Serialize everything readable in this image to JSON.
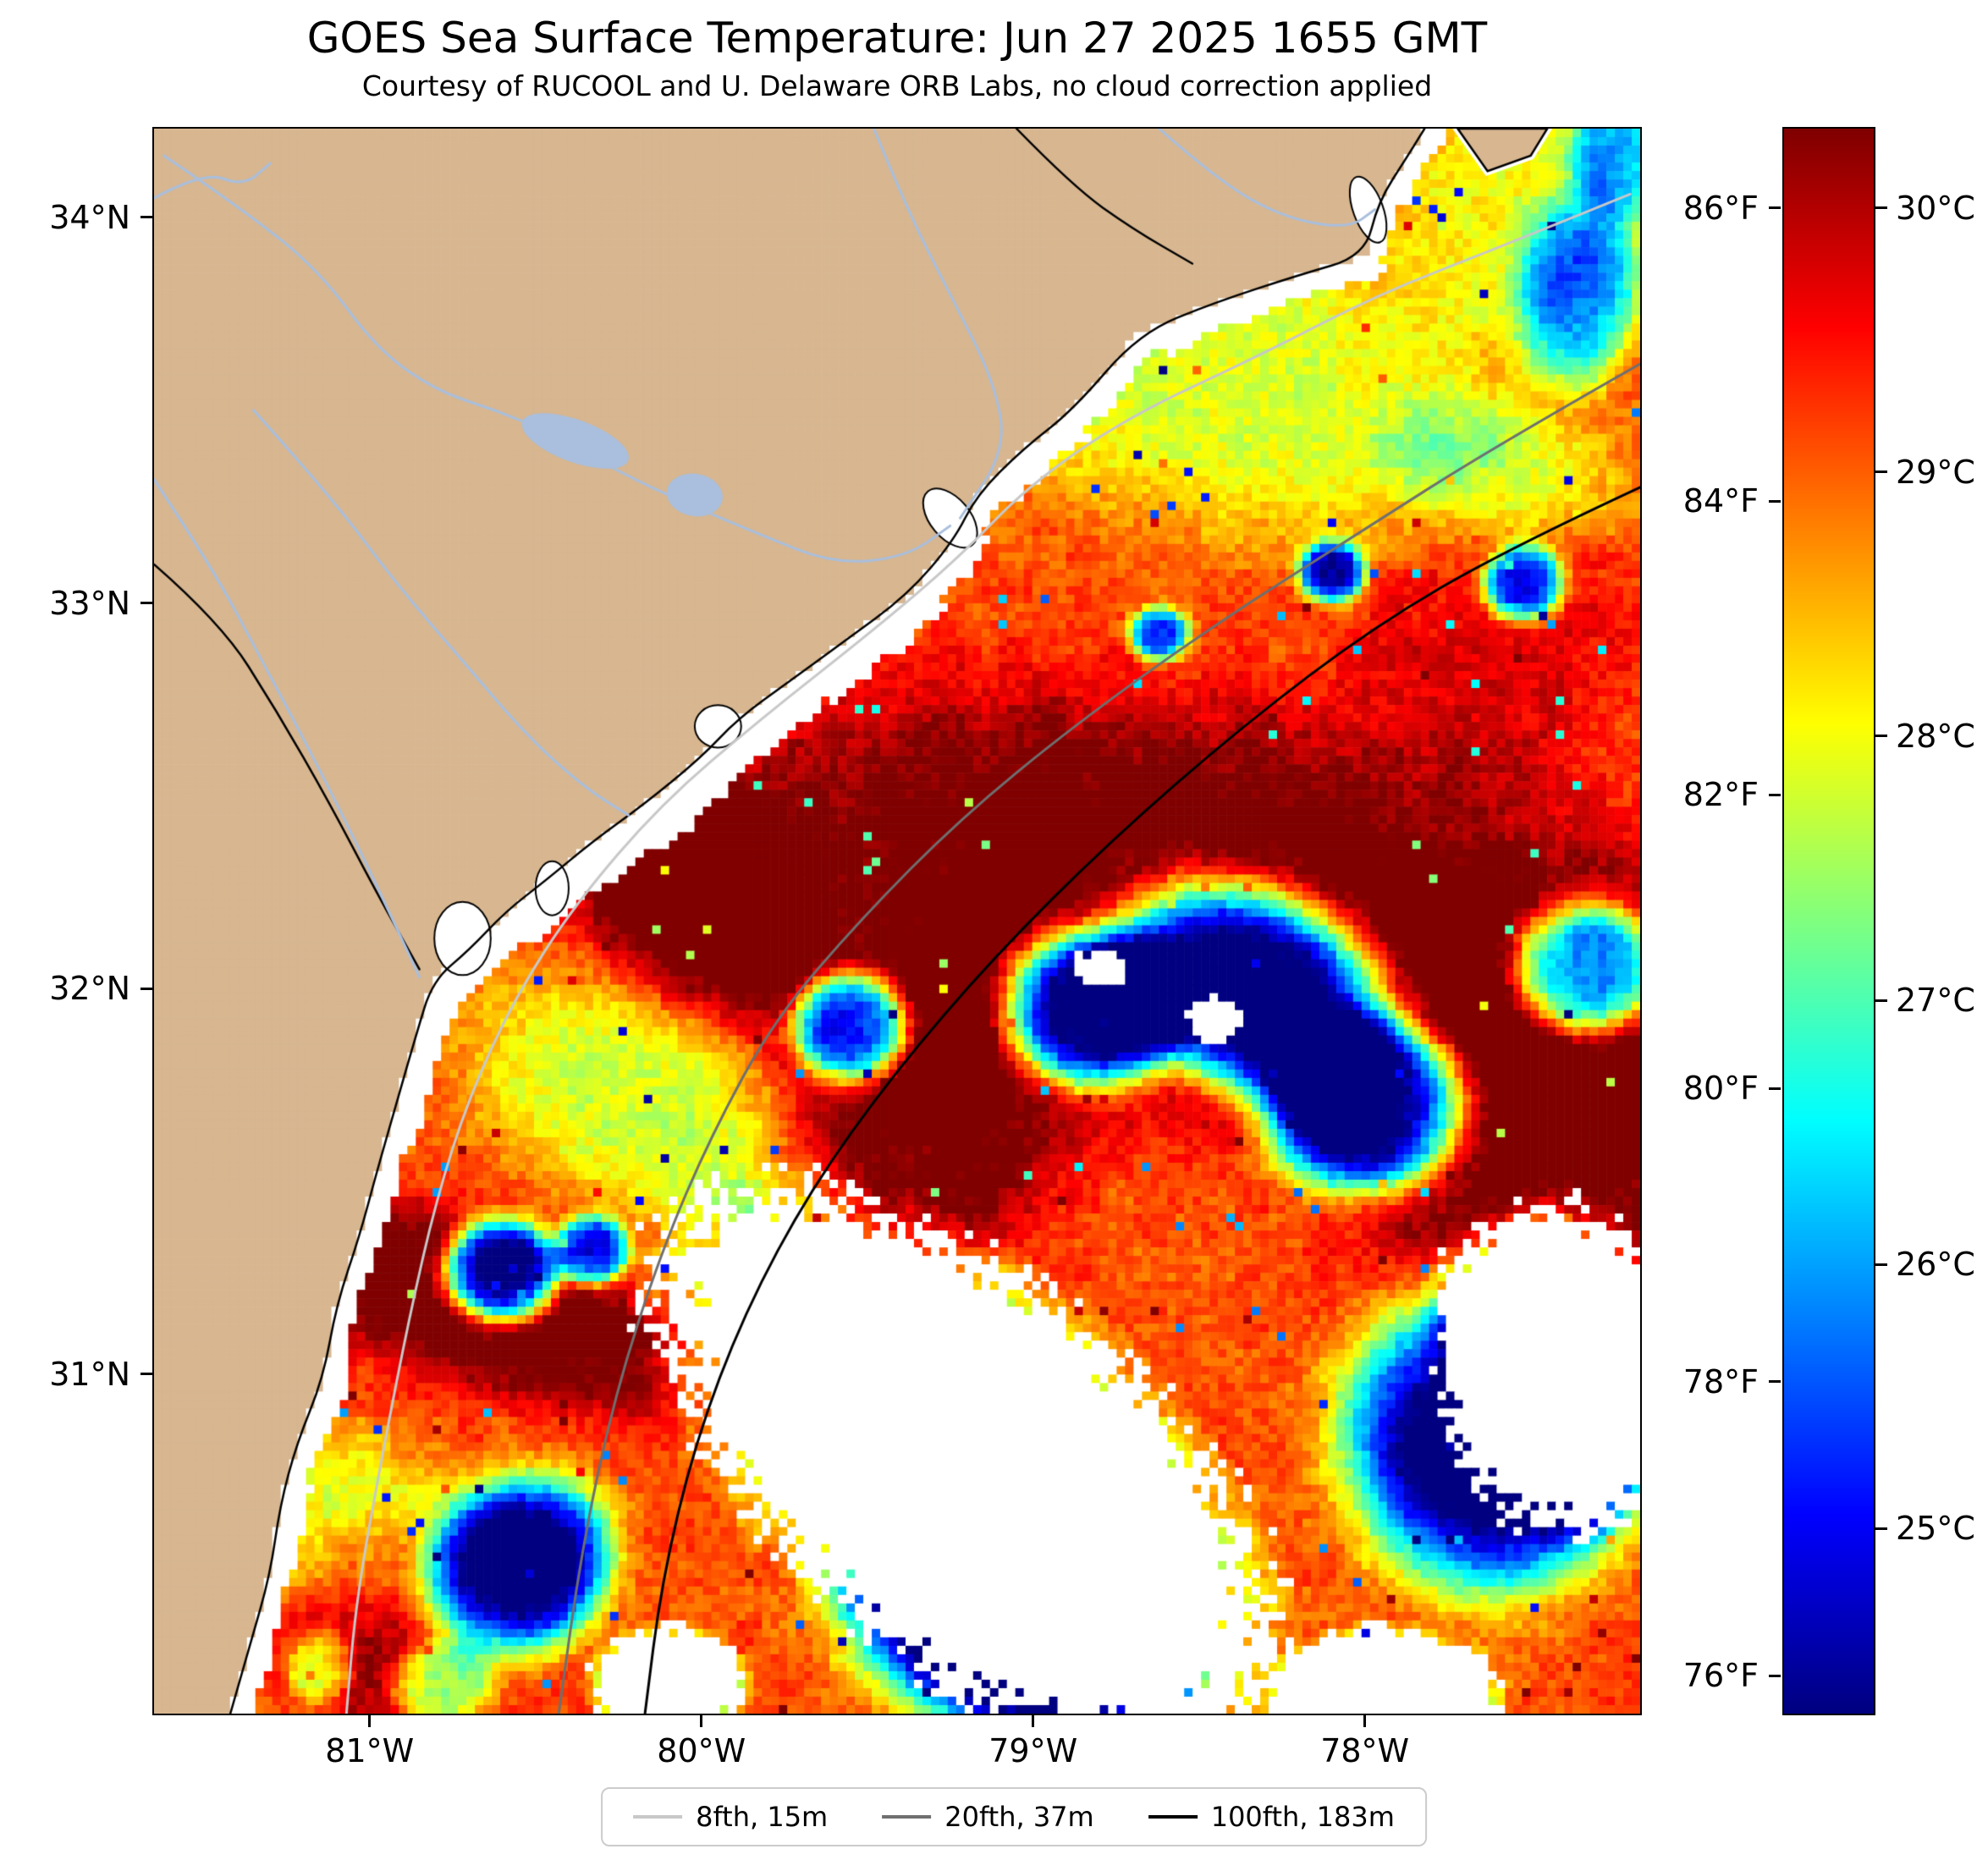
{
  "chart_data": {
    "type": "heatmap",
    "title": "GOES Sea Surface Temperature: Jun 27 2025 1655 GMT",
    "subtitle": "Courtesy of RUCOOL and U. Delaware ORB Labs, no cloud correction applied",
    "description": "Satellite sea-surface temperature heat map of the South Atlantic Bight (Georgia / Carolinas coast). Jet colormap: dark-red Gulf Stream water near 30C offshore, red-orange shelf water 28.5-29.5C, yellow-green cooler nearshore water ~27-28C in the north and southwest, scattered dark-blue cloud-contaminated pixels ~24.5-26C, and white cloud-masked / no-data areas including a band along the coastline. Land is tan with light-blue rivers and lakes, black state borders, and gray/black bathymetry contours (8, 20, 100 fathoms).",
    "extent": {
      "lon_min": -81.65,
      "lon_max": -77.17,
      "lat_min": 30.12,
      "lat_max": 34.23
    },
    "axes": {
      "lon_ticks": [
        {
          "v": -81,
          "label": "81°W"
        },
        {
          "v": -80,
          "label": "80°W"
        },
        {
          "v": -79,
          "label": "79°W"
        },
        {
          "v": -78,
          "label": "78°W"
        }
      ],
      "lat_ticks": [
        {
          "v": 34,
          "label": "34°N"
        },
        {
          "v": 33,
          "label": "33°N"
        },
        {
          "v": 32,
          "label": "32°N"
        },
        {
          "v": 31,
          "label": "31°N"
        }
      ]
    },
    "colorbar": {
      "colormap": "jet",
      "vmin_c": 24.3,
      "vmax_c": 30.3,
      "unit_left": "°F",
      "unit_right": "°C",
      "ticks_f": [
        {
          "c": 30.0,
          "label": "86°F"
        },
        {
          "c": 28.889,
          "label": "84°F"
        },
        {
          "c": 27.778,
          "label": "82°F"
        },
        {
          "c": 26.667,
          "label": "80°F"
        },
        {
          "c": 25.556,
          "label": "78°F"
        },
        {
          "c": 24.444,
          "label": "76°F"
        }
      ],
      "ticks_c": [
        {
          "c": 30,
          "label": "30°C"
        },
        {
          "c": 29,
          "label": "29°C"
        },
        {
          "c": 28,
          "label": "28°C"
        },
        {
          "c": 27,
          "label": "27°C"
        },
        {
          "c": 26,
          "label": "26°C"
        },
        {
          "c": 25,
          "label": "25°C"
        }
      ]
    },
    "legend": {
      "items": [
        {
          "label": "8fth, 15m"
        },
        {
          "label": "20fth, 37m"
        },
        {
          "label": "100fth, 183m"
        }
      ]
    },
    "contours": [
      {
        "id": "8fth",
        "color": "#c8c8c8",
        "points": [
          [
            -77.2,
            34.06
          ],
          [
            -77.6,
            33.92
          ],
          [
            -77.96,
            33.8
          ],
          [
            -78.32,
            33.64
          ],
          [
            -78.72,
            33.48
          ],
          [
            -79.02,
            33.3
          ],
          [
            -79.22,
            33.12
          ],
          [
            -79.48,
            32.93
          ],
          [
            -79.82,
            32.7
          ],
          [
            -80.12,
            32.48
          ],
          [
            -80.38,
            32.22
          ],
          [
            -80.56,
            31.98
          ],
          [
            -80.7,
            31.72
          ],
          [
            -80.8,
            31.45
          ],
          [
            -80.88,
            31.15
          ],
          [
            -80.96,
            30.8
          ],
          [
            -81.04,
            30.42
          ],
          [
            -81.07,
            30.12
          ]
        ]
      },
      {
        "id": "20fth",
        "color": "#6f6f6f",
        "points": [
          [
            -77.17,
            33.62
          ],
          [
            -77.62,
            33.4
          ],
          [
            -78.02,
            33.18
          ],
          [
            -78.46,
            32.94
          ],
          [
            -78.88,
            32.68
          ],
          [
            -79.22,
            32.44
          ],
          [
            -79.52,
            32.18
          ],
          [
            -79.78,
            31.92
          ],
          [
            -79.97,
            31.62
          ],
          [
            -80.12,
            31.32
          ],
          [
            -80.26,
            30.95
          ],
          [
            -80.36,
            30.55
          ],
          [
            -80.43,
            30.12
          ]
        ]
      },
      {
        "id": "100fth",
        "color": "#000000",
        "points": [
          [
            -77.17,
            33.3
          ],
          [
            -77.57,
            33.14
          ],
          [
            -77.97,
            32.94
          ],
          [
            -78.37,
            32.68
          ],
          [
            -78.77,
            32.38
          ],
          [
            -79.12,
            32.08
          ],
          [
            -79.42,
            31.78
          ],
          [
            -79.67,
            31.48
          ],
          [
            -79.87,
            31.16
          ],
          [
            -80.02,
            30.82
          ],
          [
            -80.12,
            30.46
          ],
          [
            -80.17,
            30.12
          ]
        ]
      }
    ],
    "colors": {
      "land": "#d7b690",
      "river": "#a9bfdd",
      "coastline": "#000000",
      "no_data": "#ffffff"
    },
    "field": {
      "base": 29.1,
      "noise_fine": 0.26,
      "noise_coarse": 0.14,
      "grid": [
        176,
        187
      ],
      "blobs": [
        [
          -80.75,
          31.2,
          0.22,
          0.85,
          75,
          1.6
        ],
        [
          -80.05,
          32.28,
          0.45,
          0.28,
          -35,
          1.4
        ],
        [
          -78.5,
          32.2,
          1.7,
          0.55,
          -8,
          1.55
        ],
        [
          -77.45,
          31.35,
          0.55,
          0.75,
          0,
          1.3
        ],
        [
          -79.35,
          31.65,
          0.45,
          0.38,
          -20,
          1.35
        ],
        [
          -80.9,
          30.33,
          0.35,
          0.28,
          0,
          1.25
        ],
        [
          -77.6,
          32.9,
          0.45,
          0.35,
          0,
          0.6
        ],
        [
          -78.55,
          33.62,
          1.15,
          0.42,
          -12,
          -1.25
        ],
        [
          -77.5,
          34.02,
          0.45,
          0.35,
          0,
          -1.1
        ],
        [
          -77.36,
          33.8,
          0.18,
          0.24,
          0,
          -2.6
        ],
        [
          -77.24,
          34.16,
          0.14,
          0.18,
          0,
          -2.2
        ],
        [
          -80.2,
          31.7,
          0.28,
          0.55,
          70,
          -1.35
        ],
        [
          -81.05,
          30.6,
          0.25,
          0.45,
          75,
          -1.2
        ],
        [
          -80.78,
          30.2,
          0.16,
          0.11,
          0,
          -2.6
        ],
        [
          -81.15,
          30.24,
          0.1,
          0.1,
          0,
          -2.0
        ],
        [
          -77.6,
          33.35,
          0.38,
          0.18,
          -15,
          -0.8
        ],
        [
          -78.82,
          31.95,
          0.26,
          0.2,
          0,
          -6.5
        ],
        [
          -78.35,
          32.0,
          0.42,
          0.26,
          -15,
          -6.8
        ],
        [
          -78.0,
          31.7,
          0.3,
          0.22,
          0,
          -6.5
        ],
        [
          -79.55,
          31.9,
          0.17,
          0.14,
          0,
          -5.5
        ],
        [
          -80.6,
          31.27,
          0.17,
          0.13,
          0,
          -6.5
        ],
        [
          -80.55,
          30.5,
          0.28,
          0.22,
          20,
          -5.5
        ],
        [
          -77.6,
          30.85,
          0.45,
          0.4,
          0,
          -6.0
        ],
        [
          -77.33,
          32.05,
          0.22,
          0.17,
          0,
          -5.0
        ],
        [
          -79.05,
          30.32,
          0.5,
          0.26,
          -10,
          -5.5
        ],
        [
          -77.52,
          33.05,
          0.12,
          0.1,
          0,
          -4.5
        ],
        [
          -78.1,
          33.08,
          0.1,
          0.08,
          0,
          -4.5
        ],
        [
          -78.62,
          32.92,
          0.09,
          0.07,
          0,
          -4.0
        ],
        [
          -80.33,
          31.32,
          0.11,
          0.09,
          0,
          -4.5
        ]
      ],
      "masks": [
        [
          -79.2,
          30.75,
          1.15,
          0.55,
          -34
        ],
        [
          -77.42,
          31.02,
          0.4,
          0.48,
          20
        ],
        [
          -80.1,
          30.2,
          0.25,
          0.16,
          0
        ],
        [
          -77.95,
          30.16,
          0.4,
          0.2,
          0
        ],
        [
          -78.45,
          31.92,
          0.1,
          0.07,
          0
        ],
        [
          -78.8,
          32.05,
          0.08,
          0.06,
          0
        ]
      ]
    },
    "geo": {
      "coast": [
        [
          -81.42,
          30.12
        ],
        [
          -81.36,
          30.3
        ],
        [
          -81.3,
          30.48
        ],
        [
          -81.27,
          30.66
        ],
        [
          -81.22,
          30.82
        ],
        [
          -81.14,
          30.99
        ],
        [
          -81.1,
          31.18
        ],
        [
          -81.03,
          31.36
        ],
        [
          -80.98,
          31.52
        ],
        [
          -80.92,
          31.7
        ],
        [
          -80.86,
          31.88
        ],
        [
          -80.81,
          32.02
        ],
        [
          -80.7,
          32.1
        ],
        [
          -80.59,
          32.2
        ],
        [
          -80.47,
          32.28
        ],
        [
          -80.33,
          32.38
        ],
        [
          -80.17,
          32.48
        ],
        [
          -80.0,
          32.6
        ],
        [
          -79.89,
          32.7
        ],
        [
          -79.73,
          32.8
        ],
        [
          -79.57,
          32.9
        ],
        [
          -79.38,
          33.02
        ],
        [
          -79.24,
          33.16
        ],
        [
          -79.17,
          33.28
        ],
        [
          -79.03,
          33.4
        ],
        [
          -78.88,
          33.5
        ],
        [
          -78.68,
          33.7
        ],
        [
          -78.45,
          33.78
        ],
        [
          -78.2,
          33.85
        ],
        [
          -78.0,
          33.9
        ],
        [
          -77.96,
          34.04
        ],
        [
          -77.87,
          34.16
        ],
        [
          -77.82,
          34.23
        ]
      ],
      "island": [
        [
          -77.72,
          34.23
        ],
        [
          -77.63,
          34.12
        ],
        [
          -77.5,
          34.16
        ],
        [
          -77.45,
          34.23
        ]
      ],
      "bays": [
        [
          -79.25,
          33.22,
          0.06,
          0.09,
          40
        ],
        [
          -79.95,
          32.68,
          0.07,
          0.055,
          0
        ],
        [
          -80.72,
          32.13,
          0.085,
          0.095,
          0
        ],
        [
          -80.45,
          32.26,
          0.05,
          0.07,
          0
        ],
        [
          -77.99,
          34.02,
          0.045,
          0.09,
          20
        ]
      ],
      "rivers": [
        [
          [
            -81.62,
            34.16
          ],
          [
            -81.38,
            34.02
          ],
          [
            -81.15,
            33.86
          ],
          [
            -80.98,
            33.66
          ],
          [
            -80.8,
            33.55
          ],
          [
            -80.62,
            33.5
          ],
          [
            -80.45,
            33.44
          ],
          [
            -80.25,
            33.34
          ],
          [
            -80.05,
            33.26
          ],
          [
            -79.83,
            33.18
          ],
          [
            -79.6,
            33.1
          ],
          [
            -79.38,
            33.12
          ],
          [
            -79.25,
            33.2
          ]
        ],
        [
          [
            -79.48,
            34.23
          ],
          [
            -79.38,
            34.02
          ],
          [
            -79.25,
            33.8
          ],
          [
            -79.12,
            33.58
          ],
          [
            -79.08,
            33.4
          ],
          [
            -79.22,
            33.22
          ]
        ],
        [
          [
            -81.35,
            33.5
          ],
          [
            -81.12,
            33.28
          ],
          [
            -80.92,
            33.05
          ],
          [
            -80.72,
            32.85
          ],
          [
            -80.52,
            32.65
          ],
          [
            -80.35,
            32.52
          ],
          [
            -80.22,
            32.45
          ]
        ],
        [
          [
            -78.62,
            34.23
          ],
          [
            -78.45,
            34.1
          ],
          [
            -78.25,
            34.0
          ],
          [
            -78.05,
            33.97
          ],
          [
            -77.97,
            34.02
          ]
        ],
        [
          [
            -81.65,
            33.32
          ],
          [
            -81.48,
            33.1
          ],
          [
            -81.33,
            32.86
          ],
          [
            -81.17,
            32.6
          ],
          [
            -81.03,
            32.36
          ],
          [
            -80.92,
            32.16
          ],
          [
            -80.85,
            32.03
          ]
        ],
        [
          [
            -81.65,
            34.05
          ],
          [
            -81.5,
            34.12
          ],
          [
            -81.38,
            34.08
          ],
          [
            -81.3,
            34.14
          ]
        ]
      ],
      "lakes": [
        [
          -80.38,
          33.42,
          0.17,
          0.055,
          -20
        ],
        [
          -80.02,
          33.28,
          0.085,
          0.055,
          -10
        ]
      ],
      "borders": [
        [
          [
            -79.05,
            34.23
          ],
          [
            -78.88,
            34.08
          ],
          [
            -78.7,
            33.97
          ],
          [
            -78.52,
            33.88
          ]
        ],
        [
          [
            -81.65,
            33.1
          ],
          [
            -81.45,
            32.95
          ],
          [
            -81.28,
            32.72
          ],
          [
            -81.12,
            32.48
          ],
          [
            -80.98,
            32.25
          ],
          [
            -80.85,
            32.05
          ]
        ]
      ]
    }
  }
}
